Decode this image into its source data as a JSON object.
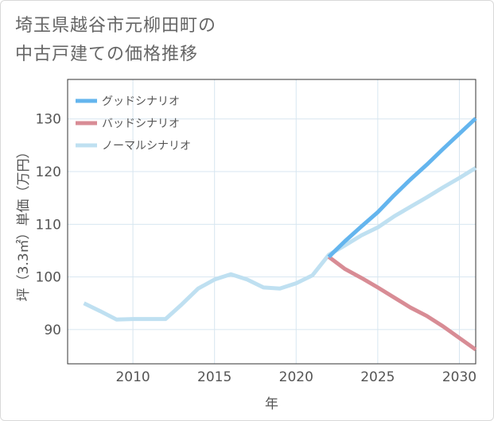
{
  "page_title": {
    "line1": "埼玉県越谷市元柳田町の",
    "line2": "中古戸建ての価格推移"
  },
  "colors": {
    "good": "#64b5ee",
    "bad": "#d88c95",
    "normal": "#bfe0f1",
    "grid": "#d7e6f0",
    "plot_border": "#333333"
  },
  "chart_data": {
    "type": "line",
    "xlabel": "年",
    "ylabel": "坪（3.3㎡）単価（万円）",
    "xlim": [
      2006,
      2031
    ],
    "ylim": [
      83.5,
      137.5
    ],
    "xticks": [
      2010,
      2015,
      2020,
      2025,
      2030
    ],
    "yticks": [
      90,
      100,
      110,
      120,
      130
    ],
    "legend_position": "top-left",
    "series": [
      {
        "name": "グッドシナリオ",
        "color_key": "good",
        "x": [
          2022,
          2023,
          2024,
          2025,
          2026,
          2027,
          2028,
          2029,
          2030,
          2031
        ],
        "y": [
          103.8,
          106.8,
          109.6,
          112.3,
          115.5,
          118.5,
          121.3,
          124.3,
          127.2,
          130.1
        ]
      },
      {
        "name": "バッドシナリオ",
        "color_key": "bad",
        "x": [
          2022,
          2023,
          2024,
          2025,
          2026,
          2027,
          2028,
          2029,
          2030,
          2031
        ],
        "y": [
          103.8,
          101.5,
          99.8,
          98.0,
          96.1,
          94.2,
          92.6,
          90.6,
          88.4,
          86.2
        ]
      },
      {
        "name": "ノーマルシナリオ",
        "color_key": "normal",
        "x": [
          2007,
          2008,
          2009,
          2010,
          2011,
          2012,
          2013,
          2014,
          2015,
          2016,
          2017,
          2018,
          2019,
          2020,
          2021,
          2022,
          2023,
          2024,
          2025,
          2026,
          2027,
          2028,
          2029,
          2030,
          2031
        ],
        "y": [
          95.0,
          93.5,
          91.9,
          92.0,
          92.0,
          92.0,
          94.8,
          97.8,
          99.5,
          100.5,
          99.5,
          98.0,
          97.8,
          98.8,
          100.3,
          104.2,
          106.0,
          107.9,
          109.4,
          111.5,
          113.3,
          115.1,
          117.0,
          118.8,
          120.7
        ]
      }
    ]
  }
}
